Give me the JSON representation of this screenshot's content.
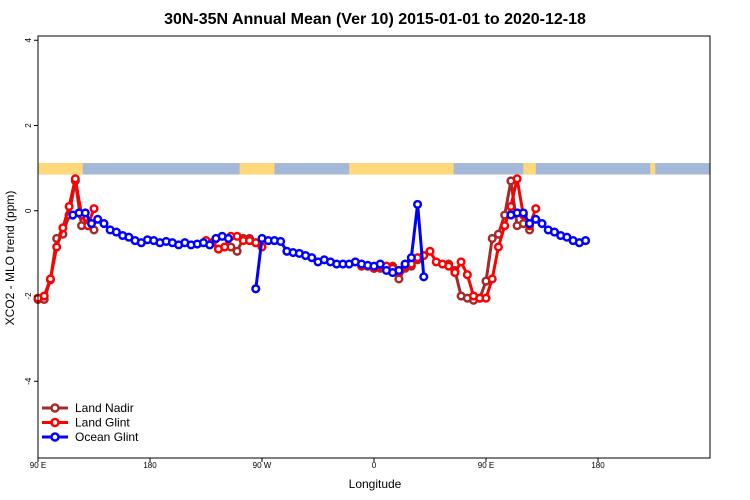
{
  "chart_data": {
    "type": "line",
    "title": "30N-35N Annual Mean (Ver 10)   2015-01-01 to 2020-12-18",
    "xlabel": "Longitude",
    "ylabel": "XCO2 - MLO trend (ppm)",
    "xlim": [
      -90,
      180
    ],
    "ylim": [
      -5.8,
      4.1
    ],
    "x_ticks": [
      {
        "value": -90,
        "label": "90 E"
      },
      {
        "value": -45,
        "label": "180"
      },
      {
        "value": 0,
        "label": "90 W"
      },
      {
        "value": 45,
        "label": "0"
      },
      {
        "value": 90,
        "label": "90 E"
      },
      {
        "value": 135,
        "label": "180"
      }
    ],
    "y_ticks": [
      {
        "value": -4,
        "label": "-4"
      },
      {
        "value": -2,
        "label": "-2"
      },
      {
        "value": 0,
        "label": "0"
      },
      {
        "value": 2,
        "label": "2"
      },
      {
        "value": 4,
        "label": "4"
      }
    ],
    "land_ocean_strip": {
      "y_range": [
        0.85,
        1.12
      ],
      "ocean_color": "#A6B8D8",
      "land_color": "#FFD87A",
      "land_segments": [
        [
          -90,
          -72
        ],
        [
          -9,
          5
        ],
        [
          35,
          77
        ],
        [
          105,
          110
        ],
        [
          156,
          158
        ]
      ]
    },
    "legend_position": "bottom-left",
    "series": [
      {
        "name": "Land Nadir",
        "color": "#A52A2A",
        "lines": [
          [
            [
              -90,
              -2.08
            ],
            [
              -87.5,
              -2.08
            ],
            [
              -85,
              -1.62
            ],
            [
              -82.5,
              -0.65
            ],
            [
              -80,
              -0.55
            ],
            [
              -77.5,
              -0.1
            ],
            [
              -75,
              0.7
            ],
            [
              -72.5,
              -0.35
            ],
            [
              -70,
              -0.3
            ],
            [
              -67.5,
              -0.45
            ]
          ],
          [
            [
              -12.5,
              -0.85
            ],
            [
              -10,
              -0.95
            ],
            [
              -7.5,
              -0.65
            ],
            [
              -5,
              -0.65
            ]
          ],
          [
            [
              42.5,
              -1.3
            ],
            [
              45,
              -1.35
            ],
            [
              47.5,
              -1.35
            ],
            [
              50,
              -1.3
            ],
            [
              52.5,
              -1.3
            ],
            [
              55,
              -1.6
            ],
            [
              57.5,
              -1.35
            ],
            [
              60,
              -1.3
            ],
            [
              62.5,
              -1.15
            ]
          ],
          [
            [
              75,
              -1.25
            ],
            [
              77.5,
              -1.4
            ],
            [
              80,
              -2.0
            ],
            [
              82.5,
              -2.05
            ],
            [
              85,
              -2.1
            ],
            [
              87.5,
              -2.05
            ],
            [
              90,
              -1.65
            ],
            [
              92.5,
              -0.65
            ],
            [
              95,
              -0.55
            ],
            [
              97.5,
              -0.1
            ],
            [
              100,
              0.7
            ],
            [
              102.5,
              -0.35
            ],
            [
              105,
              -0.3
            ],
            [
              107.5,
              -0.45
            ]
          ]
        ],
        "isolated": []
      },
      {
        "name": "Land Glint",
        "color": "#FF0000",
        "lines": [
          [
            [
              -90,
              -2.05
            ],
            [
              -87.5,
              -2.0
            ],
            [
              -85,
              -1.6
            ],
            [
              -82.5,
              -0.85
            ],
            [
              -80,
              -0.4
            ],
            [
              -77.5,
              0.1
            ],
            [
              -75,
              0.75
            ],
            [
              -72.5,
              -0.1
            ],
            [
              -70,
              -0.35
            ],
            [
              -67.5,
              0.05
            ]
          ],
          [
            [
              -22.5,
              -0.7
            ],
            [
              -20,
              -0.75
            ],
            [
              -17.5,
              -0.9
            ],
            [
              -15,
              -0.85
            ],
            [
              -12.5,
              -0.6
            ],
            [
              -10,
              -0.6
            ],
            [
              -7.5,
              -0.7
            ],
            [
              -5,
              -0.7
            ],
            [
              -2.5,
              -0.75
            ],
            [
              0,
              -0.85
            ]
          ],
          [
            [
              40,
              -1.3
            ],
            [
              42.5,
              -1.3
            ],
            [
              45,
              -1.35
            ],
            [
              47.5,
              -1.3
            ],
            [
              50,
              -1.3
            ],
            [
              52.5,
              -1.35
            ],
            [
              55,
              -1.45
            ],
            [
              57.5,
              -1.3
            ],
            [
              60,
              -1.25
            ],
            [
              62.5,
              -1.1
            ],
            [
              65,
              -1.05
            ],
            [
              67.5,
              -0.95
            ],
            [
              70,
              -1.2
            ],
            [
              72.5,
              -1.25
            ],
            [
              75,
              -1.3
            ],
            [
              77.5,
              -1.45
            ],
            [
              80,
              -1.2
            ],
            [
              82.5,
              -1.5
            ],
            [
              85,
              -2.0
            ],
            [
              87.5,
              -2.05
            ],
            [
              90,
              -2.05
            ],
            [
              92.5,
              -1.6
            ],
            [
              95,
              -0.85
            ],
            [
              97.5,
              -0.35
            ],
            [
              100,
              0.1
            ],
            [
              102.5,
              0.75
            ],
            [
              105,
              -0.1
            ],
            [
              107.5,
              -0.35
            ],
            [
              110,
              0.05
            ]
          ]
        ],
        "isolated": []
      },
      {
        "name": "Ocean Glint",
        "color": "#0000FF",
        "lines": [
          [
            [
              -76,
              -0.1
            ],
            [
              -73.5,
              -0.05
            ],
            [
              -71,
              -0.05
            ],
            [
              -68.5,
              -0.3
            ],
            [
              -66,
              -0.2
            ],
            [
              -63.5,
              -0.3
            ],
            [
              -61,
              -0.45
            ],
            [
              -58.5,
              -0.5
            ],
            [
              -56,
              -0.58
            ],
            [
              -53.5,
              -0.62
            ],
            [
              -51,
              -0.7
            ],
            [
              -48.5,
              -0.75
            ],
            [
              -46,
              -0.68
            ],
            [
              -43.5,
              -0.7
            ],
            [
              -41,
              -0.75
            ],
            [
              -38.5,
              -0.72
            ],
            [
              -36,
              -0.75
            ],
            [
              -33.5,
              -0.8
            ],
            [
              -31,
              -0.75
            ],
            [
              -28.5,
              -0.8
            ],
            [
              -26,
              -0.78
            ],
            [
              -23.5,
              -0.75
            ],
            [
              -21,
              -0.8
            ],
            [
              -18.5,
              -0.65
            ],
            [
              -16,
              -0.6
            ],
            [
              -13.5,
              -0.65
            ]
          ],
          [
            [
              -2.5,
              -1.83
            ],
            [
              0,
              -0.65
            ],
            [
              2.5,
              -0.7
            ],
            [
              5,
              -0.7
            ],
            [
              7.5,
              -0.72
            ],
            [
              10,
              -0.95
            ],
            [
              12.5,
              -0.98
            ],
            [
              15,
              -1.0
            ],
            [
              17.5,
              -1.05
            ],
            [
              20,
              -1.1
            ],
            [
              22.5,
              -1.2
            ],
            [
              25,
              -1.15
            ],
            [
              27.5,
              -1.2
            ],
            [
              30,
              -1.25
            ],
            [
              32.5,
              -1.25
            ],
            [
              35,
              -1.25
            ],
            [
              37.5,
              -1.2
            ],
            [
              40,
              -1.25
            ],
            [
              42.5,
              -1.28
            ],
            [
              45,
              -1.3
            ],
            [
              47.5,
              -1.25
            ],
            [
              50,
              -1.4
            ],
            [
              52.5,
              -1.45
            ],
            [
              55,
              -1.4
            ],
            [
              57.5,
              -1.25
            ],
            [
              60,
              -1.1
            ],
            [
              62.5,
              0.15
            ],
            [
              65,
              -1.55
            ]
          ],
          [
            [
              100,
              -0.1
            ],
            [
              102.5,
              -0.05
            ],
            [
              105,
              -0.05
            ],
            [
              107.5,
              -0.3
            ],
            [
              110,
              -0.2
            ],
            [
              112.5,
              -0.3
            ],
            [
              115,
              -0.45
            ],
            [
              117.5,
              -0.5
            ],
            [
              120,
              -0.58
            ],
            [
              122.5,
              -0.62
            ],
            [
              125,
              -0.7
            ],
            [
              127.5,
              -0.75
            ],
            [
              130,
              -0.7
            ]
          ]
        ],
        "isolated": []
      }
    ]
  }
}
